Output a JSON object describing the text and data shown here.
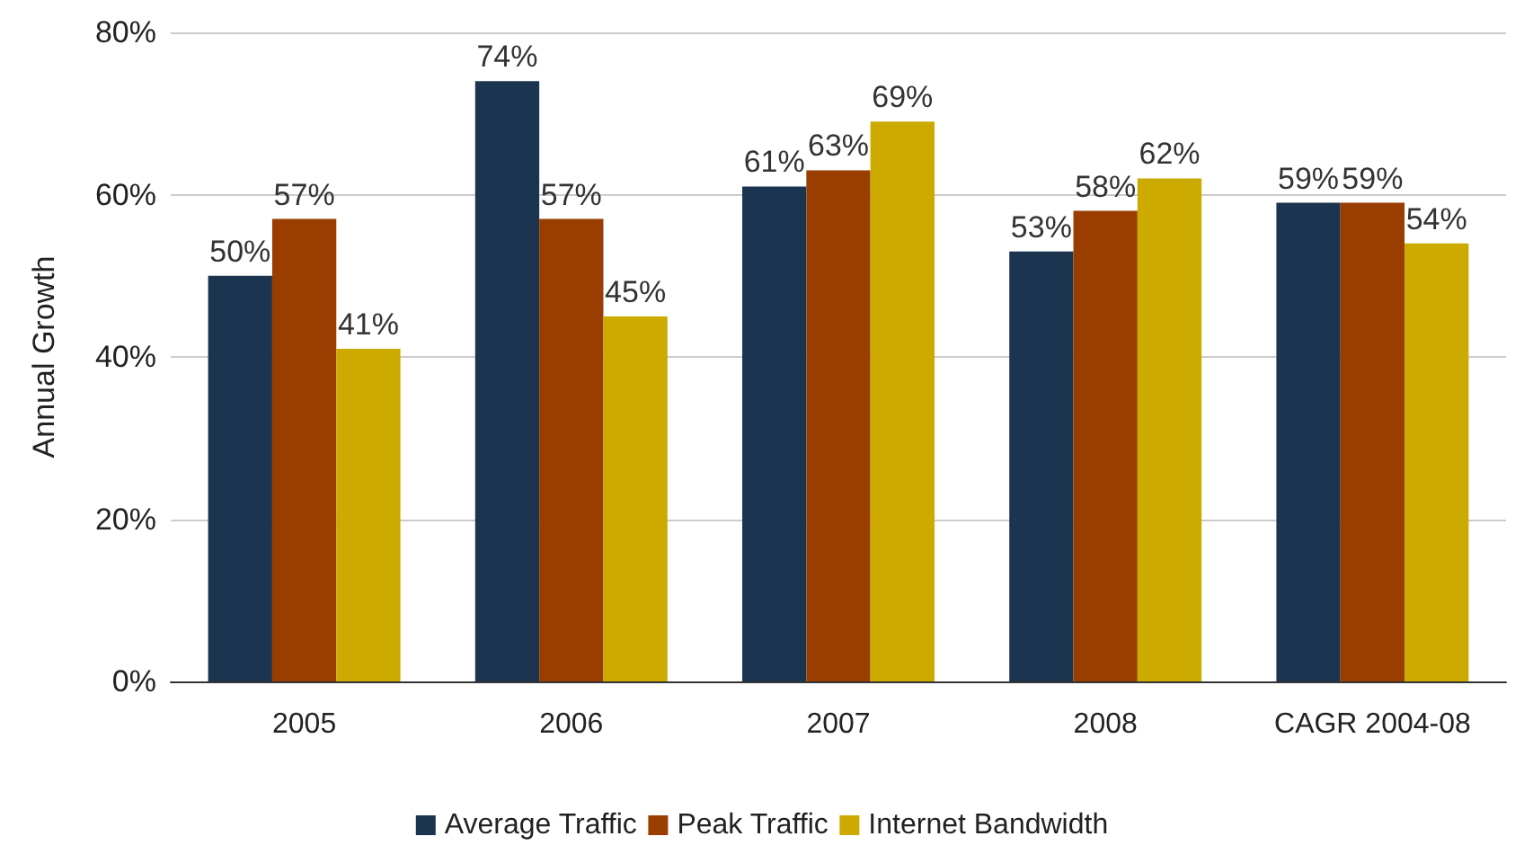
{
  "chart_data": {
    "type": "bar",
    "ylabel": "Annual Growth",
    "categories": [
      "2005",
      "2006",
      "2007",
      "2008",
      "CAGR 2004-08"
    ],
    "series": [
      {
        "name": "Average Traffic",
        "color": "#1b3550",
        "values": [
          50,
          74,
          61,
          53,
          59
        ],
        "value_labels": [
          "50%",
          "74%",
          "61%",
          "53%",
          "59%"
        ]
      },
      {
        "name": "Peak Traffic",
        "color": "#993d00",
        "values": [
          57,
          57,
          63,
          58,
          59
        ],
        "value_labels": [
          "57%",
          "57%",
          "63%",
          "58%",
          "59%"
        ]
      },
      {
        "name": "Internet Bandwidth",
        "color": "#ccaa00",
        "values": [
          41,
          45,
          69,
          62,
          54
        ],
        "value_labels": [
          "41%",
          "45%",
          "69%",
          "62%",
          "54%"
        ]
      }
    ],
    "ylim": [
      0,
      80
    ],
    "yticks": [
      {
        "value": 0,
        "label": "0%"
      },
      {
        "value": 20,
        "label": "20%"
      },
      {
        "value": 40,
        "label": "40%"
      },
      {
        "value": 60,
        "label": "60%"
      },
      {
        "value": 80,
        "label": "80%"
      }
    ],
    "grid": "y",
    "legend": "bottom"
  }
}
